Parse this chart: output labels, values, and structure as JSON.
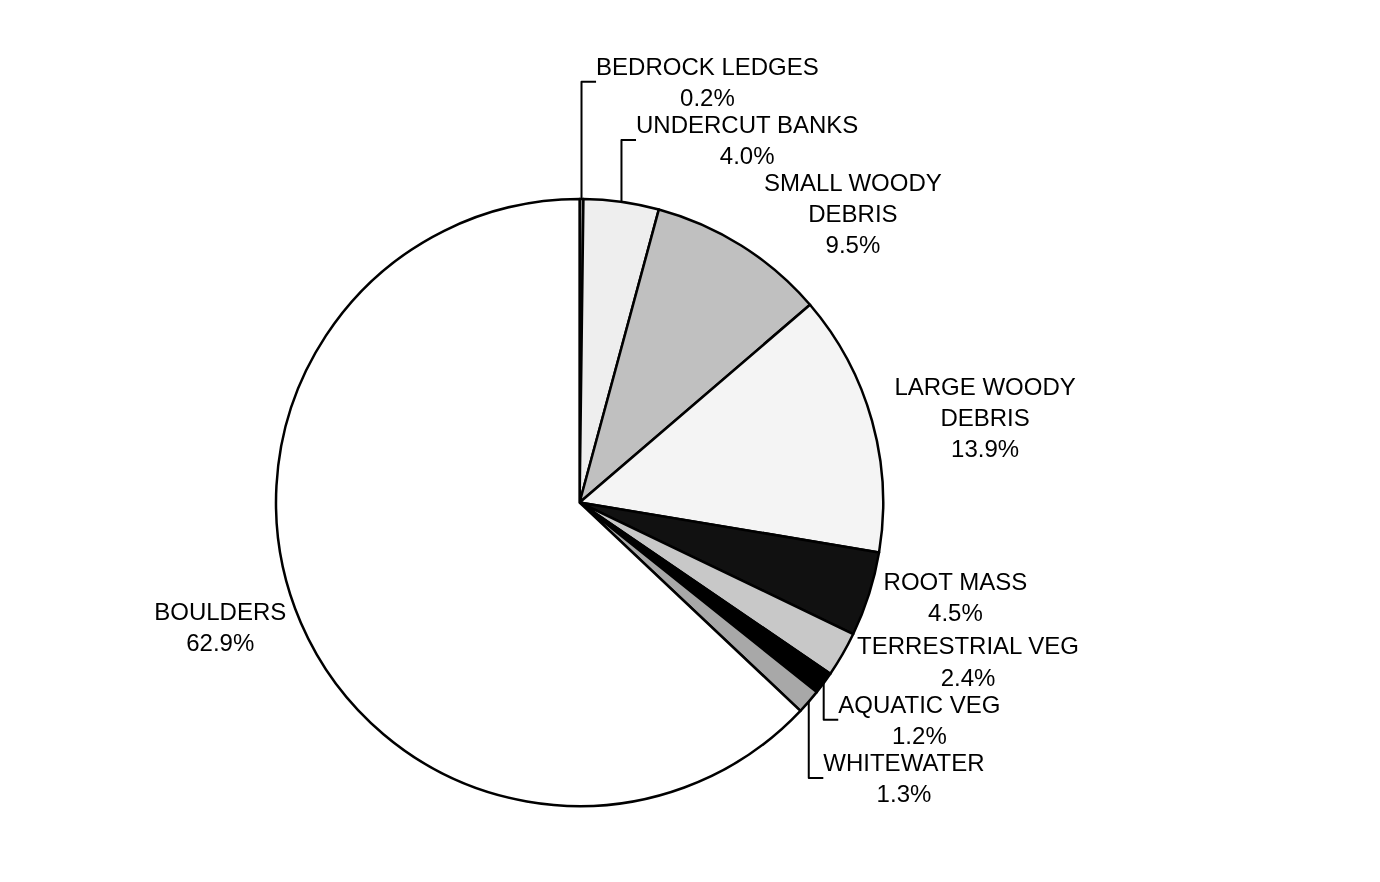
{
  "chart_data": {
    "type": "pie",
    "categories": [
      "BEDROCK LEDGES",
      "UNDERCUT BANKS",
      "SMALL WOODY\nDEBRIS",
      "LARGE WOODY\nDEBRIS",
      "ROOT MASS",
      "TERRESTRIAL VEG",
      "AQUATIC VEG",
      "WHITEWATER",
      "BOULDERS"
    ],
    "values": [
      0.2,
      4.0,
      9.5,
      13.9,
      4.5,
      2.4,
      1.2,
      1.3,
      62.9
    ],
    "value_labels": [
      "0.2%",
      "4.0%",
      "9.5%",
      "13.9%",
      "4.5%",
      "2.4%",
      "1.2%",
      "1.3%",
      "62.9%"
    ],
    "colors": [
      "#808080",
      "#eeeeee",
      "#c0c0c0",
      "#f4f4f4",
      "#111111",
      "#c8c8c8",
      "#000000",
      "#a8a8a8",
      "#ffffff"
    ],
    "legend": false
  }
}
